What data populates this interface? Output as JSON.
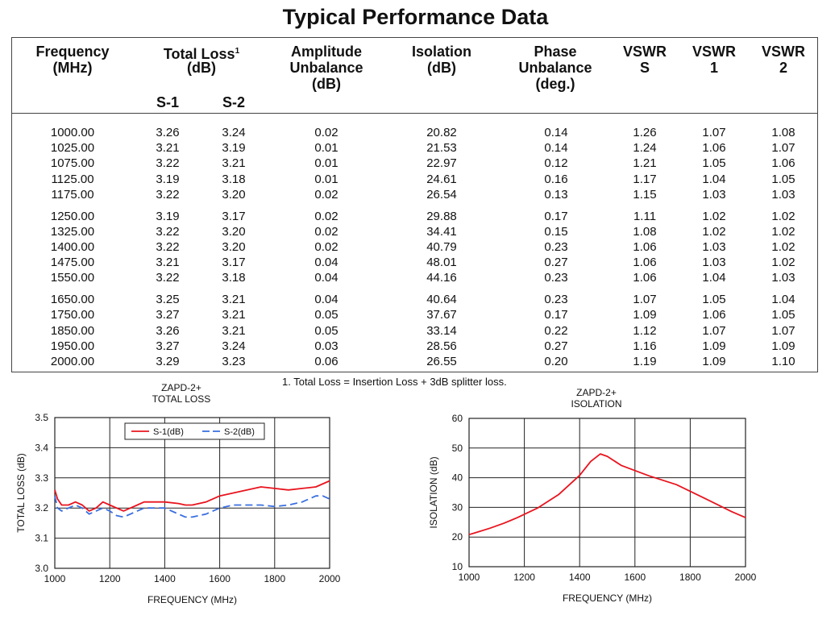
{
  "title": "Typical Performance Data",
  "table": {
    "headers": {
      "frequency": "Frequency\n(MHz)",
      "total_loss": "Total Loss",
      "total_loss_sup": "1",
      "total_loss_unit": "(dB)",
      "s1": "S-1",
      "s2": "S-2",
      "amplitude": "Amplitude\nUnbalance\n(dB)",
      "isolation": "Isolation\n(dB)",
      "phase": "Phase\nUnbalance\n(deg.)",
      "vswr_s": "VSWR\nS",
      "vswr_1": "VSWR\n1",
      "vswr_2": "VSWR\n2"
    },
    "rows": [
      [
        "1000.00",
        "3.26",
        "3.24",
        "0.02",
        "20.82",
        "0.14",
        "1.26",
        "1.07",
        "1.08"
      ],
      [
        "1025.00",
        "3.21",
        "3.19",
        "0.01",
        "21.53",
        "0.14",
        "1.24",
        "1.06",
        "1.07"
      ],
      [
        "1075.00",
        "3.22",
        "3.21",
        "0.01",
        "22.97",
        "0.12",
        "1.21",
        "1.05",
        "1.06"
      ],
      [
        "1125.00",
        "3.19",
        "3.18",
        "0.01",
        "24.61",
        "0.16",
        "1.17",
        "1.04",
        "1.05"
      ],
      [
        "1175.00",
        "3.22",
        "3.20",
        "0.02",
        "26.54",
        "0.13",
        "1.15",
        "1.03",
        "1.03"
      ],
      [
        "1250.00",
        "3.19",
        "3.17",
        "0.02",
        "29.88",
        "0.17",
        "1.11",
        "1.02",
        "1.02"
      ],
      [
        "1325.00",
        "3.22",
        "3.20",
        "0.02",
        "34.41",
        "0.15",
        "1.08",
        "1.02",
        "1.02"
      ],
      [
        "1400.00",
        "3.22",
        "3.20",
        "0.02",
        "40.79",
        "0.23",
        "1.06",
        "1.03",
        "1.02"
      ],
      [
        "1475.00",
        "3.21",
        "3.17",
        "0.04",
        "48.01",
        "0.27",
        "1.06",
        "1.03",
        "1.02"
      ],
      [
        "1550.00",
        "3.22",
        "3.18",
        "0.04",
        "44.16",
        "0.23",
        "1.06",
        "1.04",
        "1.03"
      ],
      [
        "1650.00",
        "3.25",
        "3.21",
        "0.04",
        "40.64",
        "0.23",
        "1.07",
        "1.05",
        "1.04"
      ],
      [
        "1750.00",
        "3.27",
        "3.21",
        "0.05",
        "37.67",
        "0.17",
        "1.09",
        "1.06",
        "1.05"
      ],
      [
        "1850.00",
        "3.26",
        "3.21",
        "0.05",
        "33.14",
        "0.22",
        "1.12",
        "1.07",
        "1.07"
      ],
      [
        "1950.00",
        "3.27",
        "3.24",
        "0.03",
        "28.56",
        "0.27",
        "1.16",
        "1.09",
        "1.09"
      ],
      [
        "2000.00",
        "3.29",
        "3.23",
        "0.06",
        "26.55",
        "0.20",
        "1.19",
        "1.09",
        "1.10"
      ]
    ]
  },
  "footnote": "1. Total Loss = Insertion Loss + 3dB splitter loss.",
  "chart_data": [
    {
      "type": "line",
      "title": "ZAPD-2+\nTOTAL  LOSS",
      "xlabel": "FREQUENCY (MHz)",
      "ylabel": "TOTAL  LOSS (dB)",
      "xlim": [
        1000,
        2000
      ],
      "ylim": [
        3.0,
        3.5
      ],
      "xticks": [
        1000,
        1200,
        1400,
        1600,
        1800,
        2000
      ],
      "yticks": [
        3.0,
        3.1,
        3.2,
        3.3,
        3.4,
        3.5
      ],
      "grid": true,
      "legend": "top-center",
      "series": [
        {
          "name": "S-1(dB)",
          "color": "#e8141e",
          "dash": "solid",
          "x": [
            1000,
            1010,
            1025,
            1050,
            1075,
            1100,
            1125,
            1150,
            1175,
            1200,
            1225,
            1250,
            1275,
            1300,
            1325,
            1350,
            1400,
            1450,
            1475,
            1500,
            1550,
            1600,
            1650,
            1700,
            1750,
            1800,
            1850,
            1900,
            1950,
            2000
          ],
          "y": [
            3.26,
            3.23,
            3.21,
            3.21,
            3.22,
            3.21,
            3.19,
            3.2,
            3.22,
            3.21,
            3.2,
            3.19,
            3.2,
            3.21,
            3.22,
            3.22,
            3.22,
            3.215,
            3.21,
            3.21,
            3.22,
            3.24,
            3.25,
            3.26,
            3.27,
            3.265,
            3.26,
            3.265,
            3.27,
            3.29
          ]
        },
        {
          "name": "S-2(dB)",
          "color": "#3a6fe0",
          "dash": "dashed",
          "x": [
            1000,
            1010,
            1025,
            1050,
            1075,
            1100,
            1125,
            1150,
            1175,
            1200,
            1225,
            1250,
            1275,
            1300,
            1325,
            1350,
            1400,
            1450,
            1475,
            1500,
            1550,
            1600,
            1650,
            1700,
            1750,
            1800,
            1850,
            1900,
            1950,
            1975,
            2000
          ],
          "y": [
            3.24,
            3.2,
            3.19,
            3.2,
            3.21,
            3.2,
            3.18,
            3.19,
            3.2,
            3.19,
            3.175,
            3.17,
            3.18,
            3.19,
            3.2,
            3.2,
            3.2,
            3.18,
            3.17,
            3.17,
            3.18,
            3.2,
            3.21,
            3.21,
            3.21,
            3.205,
            3.21,
            3.22,
            3.24,
            3.24,
            3.23
          ]
        }
      ]
    },
    {
      "type": "line",
      "title": "ZAPD-2+\nISOLATION",
      "xlabel": "FREQUENCY (MHz)",
      "ylabel": "ISOLATION (dB)",
      "xlim": [
        1000,
        2000
      ],
      "ylim": [
        10,
        60
      ],
      "xticks": [
        1000,
        1200,
        1400,
        1600,
        1800,
        2000
      ],
      "yticks": [
        10,
        20,
        30,
        40,
        50,
        60
      ],
      "grid": true,
      "series": [
        {
          "name": "",
          "color": "#e8141e",
          "dash": "solid",
          "x": [
            1000,
            1025,
            1075,
            1125,
            1175,
            1250,
            1325,
            1400,
            1440,
            1475,
            1500,
            1550,
            1650,
            1750,
            1850,
            1950,
            2000
          ],
          "y": [
            20.82,
            21.53,
            22.97,
            24.61,
            26.54,
            29.88,
            34.41,
            40.79,
            45.5,
            48.01,
            47.2,
            44.16,
            40.64,
            37.67,
            33.14,
            28.56,
            26.55
          ]
        }
      ]
    }
  ]
}
